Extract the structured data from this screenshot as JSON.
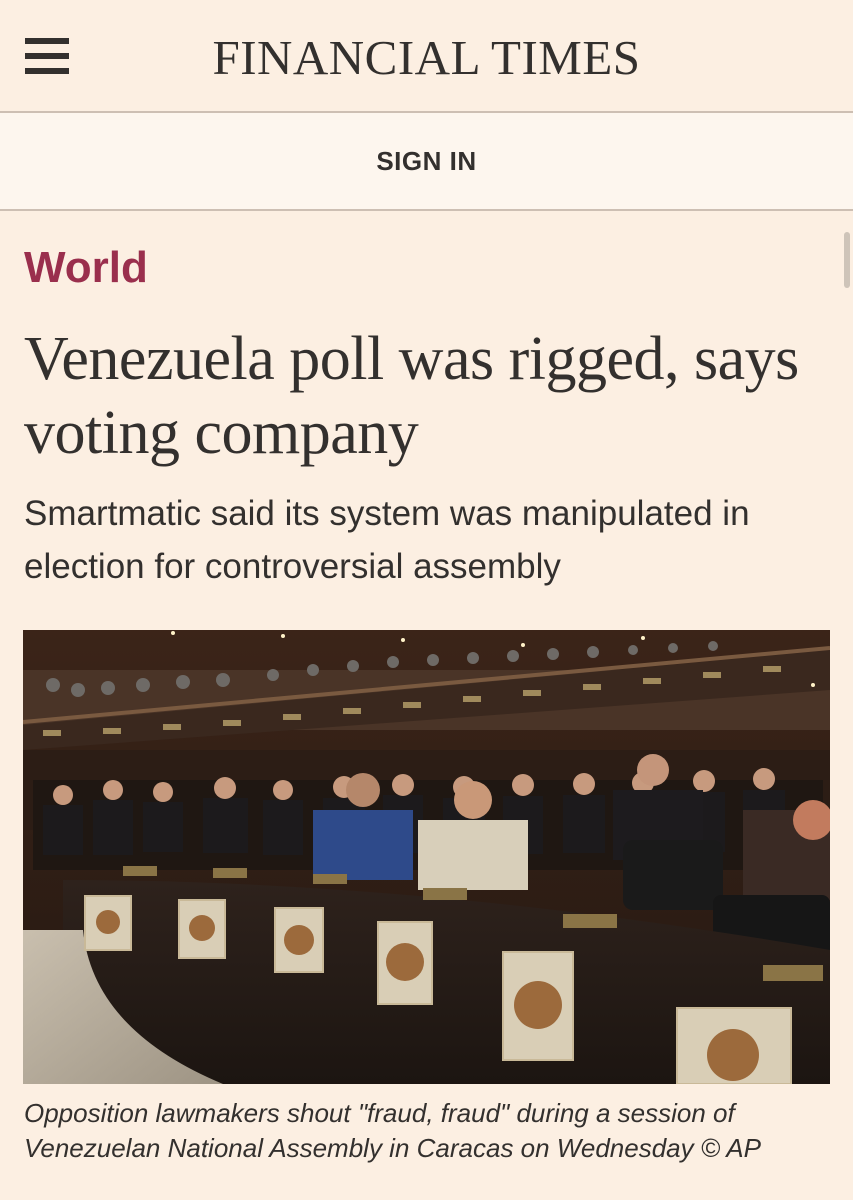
{
  "header": {
    "brand": "FINANCIAL TIMES",
    "menu_icon": "hamburger-menu-icon"
  },
  "signin": {
    "label": "SIGN IN"
  },
  "article": {
    "section": "World",
    "headline": "Venezuela poll was rigged, says voting company",
    "standfirst": "Smartmatic said its system was manipulated in election for controversial assembly",
    "image": {
      "caption": "Opposition lawmakers shout \"fraud, fraud\" during a session of Venezuelan National Assembly in Caracas on Wednesday © AP"
    }
  },
  "colors": {
    "background": "#fcefe2",
    "section_tag": "#9a2f4d",
    "text": "#33302e",
    "divider": "#cdbfb3"
  }
}
